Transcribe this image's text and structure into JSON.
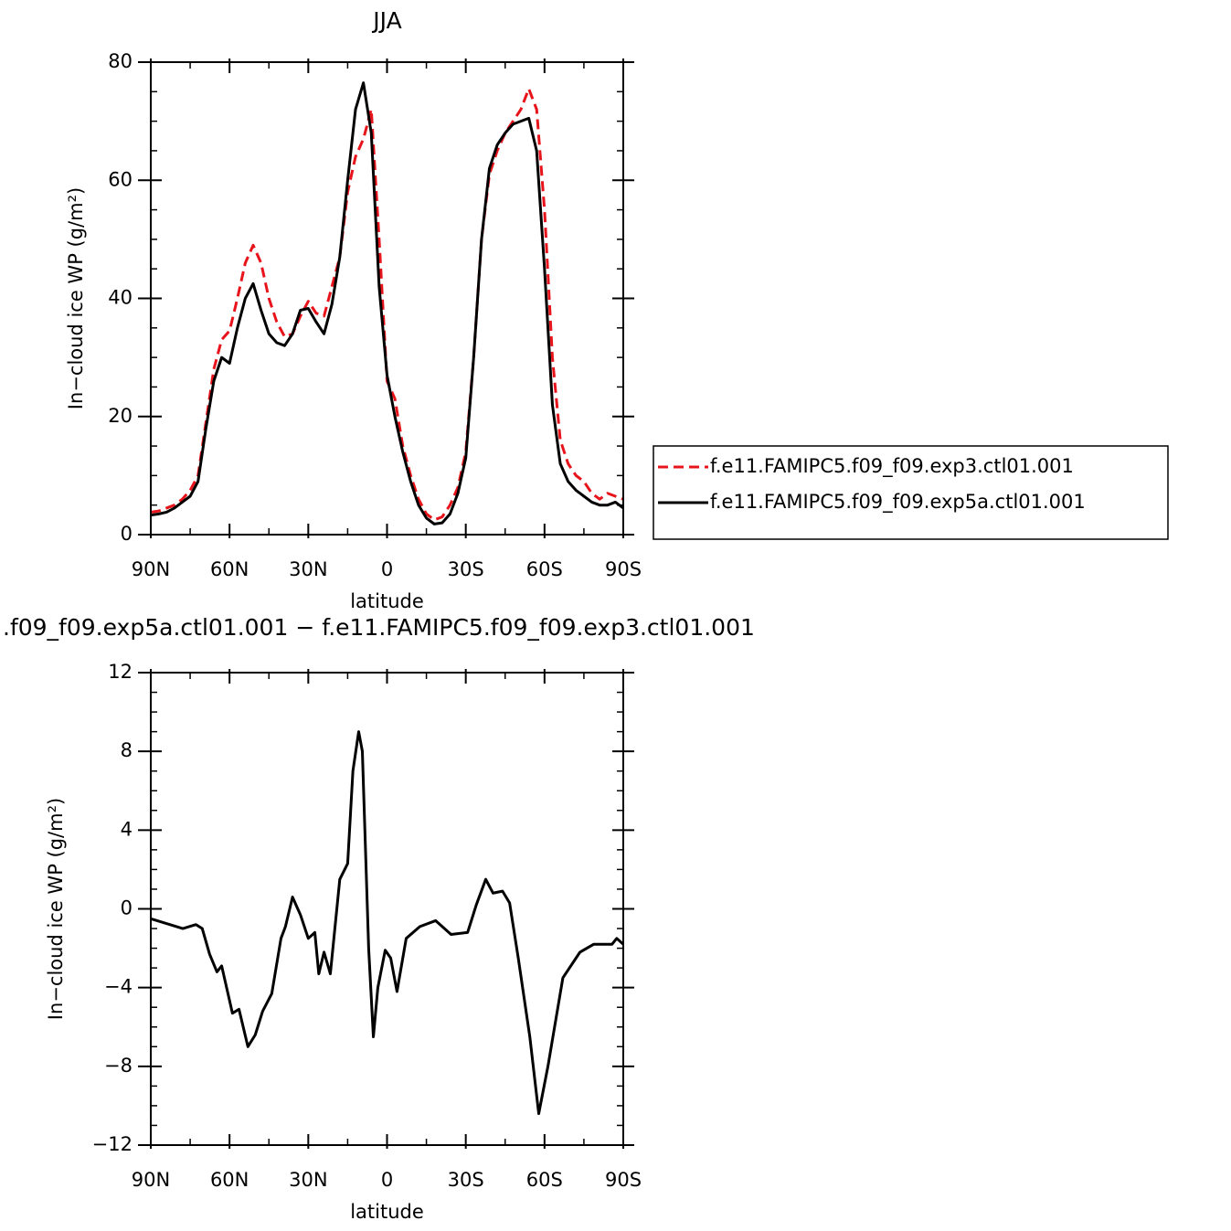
{
  "chart_data": [
    {
      "type": "line",
      "title": "JJA",
      "xlabel": "latitude",
      "ylabel": "In−cloud ice WP (g/m²)",
      "x": [
        90,
        87,
        84,
        81,
        78,
        75,
        72,
        69,
        66,
        63,
        60,
        57,
        54,
        51,
        48,
        45,
        42,
        39,
        36,
        33,
        30,
        27,
        24,
        21,
        18,
        15,
        12,
        9,
        6,
        3,
        0,
        -3,
        -6,
        -9,
        -12,
        -15,
        -18,
        -21,
        -24,
        -27,
        -30,
        -33,
        -36,
        -39,
        -42,
        -45,
        -48,
        -51,
        -54,
        -57,
        -60,
        -63,
        -66,
        -69,
        -72,
        -75,
        -78,
        -81,
        -84,
        -87,
        -90
      ],
      "series": [
        {
          "name": "f.e11.FAMIPC5.f09_f09.exp3.ctl01.001",
          "color": "#e8141b",
          "line_style": "dashed",
          "values": [
            3.8,
            4,
            4.5,
            5,
            6,
            7.5,
            10,
            19,
            28,
            33,
            34.5,
            40,
            46,
            49,
            46,
            40,
            36,
            33.5,
            34,
            37,
            39.5,
            37.5,
            37,
            42,
            47,
            58,
            64,
            67,
            72,
            50,
            26,
            23,
            15,
            10,
            6,
            3.5,
            2.5,
            3,
            5,
            8,
            14,
            30,
            50,
            61,
            65,
            68,
            70,
            72,
            75.5,
            72,
            55,
            30,
            16,
            12,
            10,
            9,
            7,
            6,
            7,
            6.5,
            6
          ]
        },
        {
          "name": "f.e11.FAMIPC5.f09_f09.exp5a.ctl01.001",
          "color": "#000000",
          "line_style": "solid",
          "values": [
            3.3,
            3.5,
            3.8,
            4.5,
            5.5,
            6.5,
            9,
            18,
            26,
            30,
            29,
            35,
            40,
            42.5,
            38,
            34,
            32.5,
            32,
            34,
            38,
            38.3,
            36,
            34,
            39,
            47,
            60,
            72,
            76.5,
            68,
            42,
            27,
            20,
            14,
            9,
            5,
            2.8,
            1.8,
            2,
            3.5,
            7,
            13,
            30,
            50,
            62,
            66,
            68,
            69.5,
            70,
            70.5,
            65,
            45,
            22,
            12,
            9,
            7.5,
            6.5,
            5.5,
            5,
            5,
            5.5,
            4.5
          ]
        }
      ],
      "xlim": [
        90,
        -90
      ],
      "xticks": [
        {
          "value": 90,
          "label": "90N"
        },
        {
          "value": 60,
          "label": "60N"
        },
        {
          "value": 30,
          "label": "30N"
        },
        0,
        {
          "value": -30,
          "label": "30S"
        },
        {
          "value": -60,
          "label": "60S"
        },
        {
          "value": -90,
          "label": "90S"
        }
      ],
      "xminorticks": [
        75,
        45,
        15,
        -15,
        -45,
        -75
      ],
      "ylim": [
        0,
        80
      ],
      "yticks": [
        0,
        20,
        40,
        60,
        80
      ],
      "yminorticks": [
        5,
        10,
        15,
        25,
        30,
        35,
        45,
        50,
        55,
        65,
        70,
        75
      ],
      "legend": "right"
    },
    {
      "type": "line",
      "title": ".f09_f09.exp5a.ctl01.001 − f.e11.FAMIPC5.f09_f09.exp3.ctl01.001",
      "xlabel": "latitude",
      "ylabel": "In−cloud ice WP (g/m²)",
      "x": [
        90,
        77.8,
        72.8,
        70.4,
        67.6,
        64.8,
        63,
        60.6,
        58.9,
        56.4,
        53,
        50.2,
        47.4,
        43.9,
        40.4,
        38.7,
        36,
        33,
        30,
        27.5,
        26,
        24,
        21.6,
        18,
        15,
        13,
        10.8,
        9.4,
        7,
        5.2,
        3.5,
        0.7,
        -1.4,
        -3.8,
        -7.3,
        -12.5,
        -18.5,
        -24.4,
        -30.7,
        -34,
        -37.6,
        -40.4,
        -44,
        -46.7,
        -50,
        -54.4,
        -57.8,
        -61.3,
        -67,
        -73.5,
        -78.7,
        -85.7,
        -87.5,
        -90
      ],
      "series": [
        {
          "color": "#000000",
          "line_style": "solid",
          "values": [
            -0.5,
            -1,
            -0.8,
            -1,
            -2.3,
            -3.2,
            -2.9,
            -4.3,
            -5.3,
            -5.1,
            -7,
            -6.4,
            -5.2,
            -4.3,
            -1.5,
            -0.9,
            0.6,
            -0.3,
            -1.5,
            -1.2,
            -3.3,
            -2.2,
            -3.3,
            1.5,
            2.3,
            7,
            9,
            8,
            -2,
            -6.5,
            -4,
            -2.1,
            -2.5,
            -4.2,
            -1.5,
            -0.9,
            -0.6,
            -1.3,
            -1.2,
            0.2,
            1.5,
            0.8,
            0.9,
            0.3,
            -2.5,
            -6.5,
            -10.4,
            -8,
            -3.5,
            -2.2,
            -1.8,
            -1.8,
            -1.5,
            -1.8
          ]
        }
      ],
      "xlim": [
        90,
        -90
      ],
      "xticks": [
        {
          "value": 90,
          "label": "90N"
        },
        {
          "value": 60,
          "label": "60N"
        },
        {
          "value": 30,
          "label": "30N"
        },
        0,
        {
          "value": -30,
          "label": "30S"
        },
        {
          "value": -60,
          "label": "60S"
        },
        {
          "value": -90,
          "label": "90S"
        }
      ],
      "xminorticks": [
        75,
        45,
        15,
        -15,
        -45,
        -75
      ],
      "ylim": [
        -12,
        12
      ],
      "yticks": [
        {
          "value": -12,
          "label": "−12"
        },
        {
          "value": -8,
          "label": "−8"
        },
        {
          "value": -4,
          "label": "−4"
        },
        0,
        4,
        8,
        12
      ],
      "yminorticks": [
        -11,
        -10,
        -9,
        -7,
        -6,
        -5,
        -3,
        -2,
        -1,
        1,
        2,
        3,
        5,
        6,
        7,
        9,
        10,
        11
      ]
    }
  ]
}
